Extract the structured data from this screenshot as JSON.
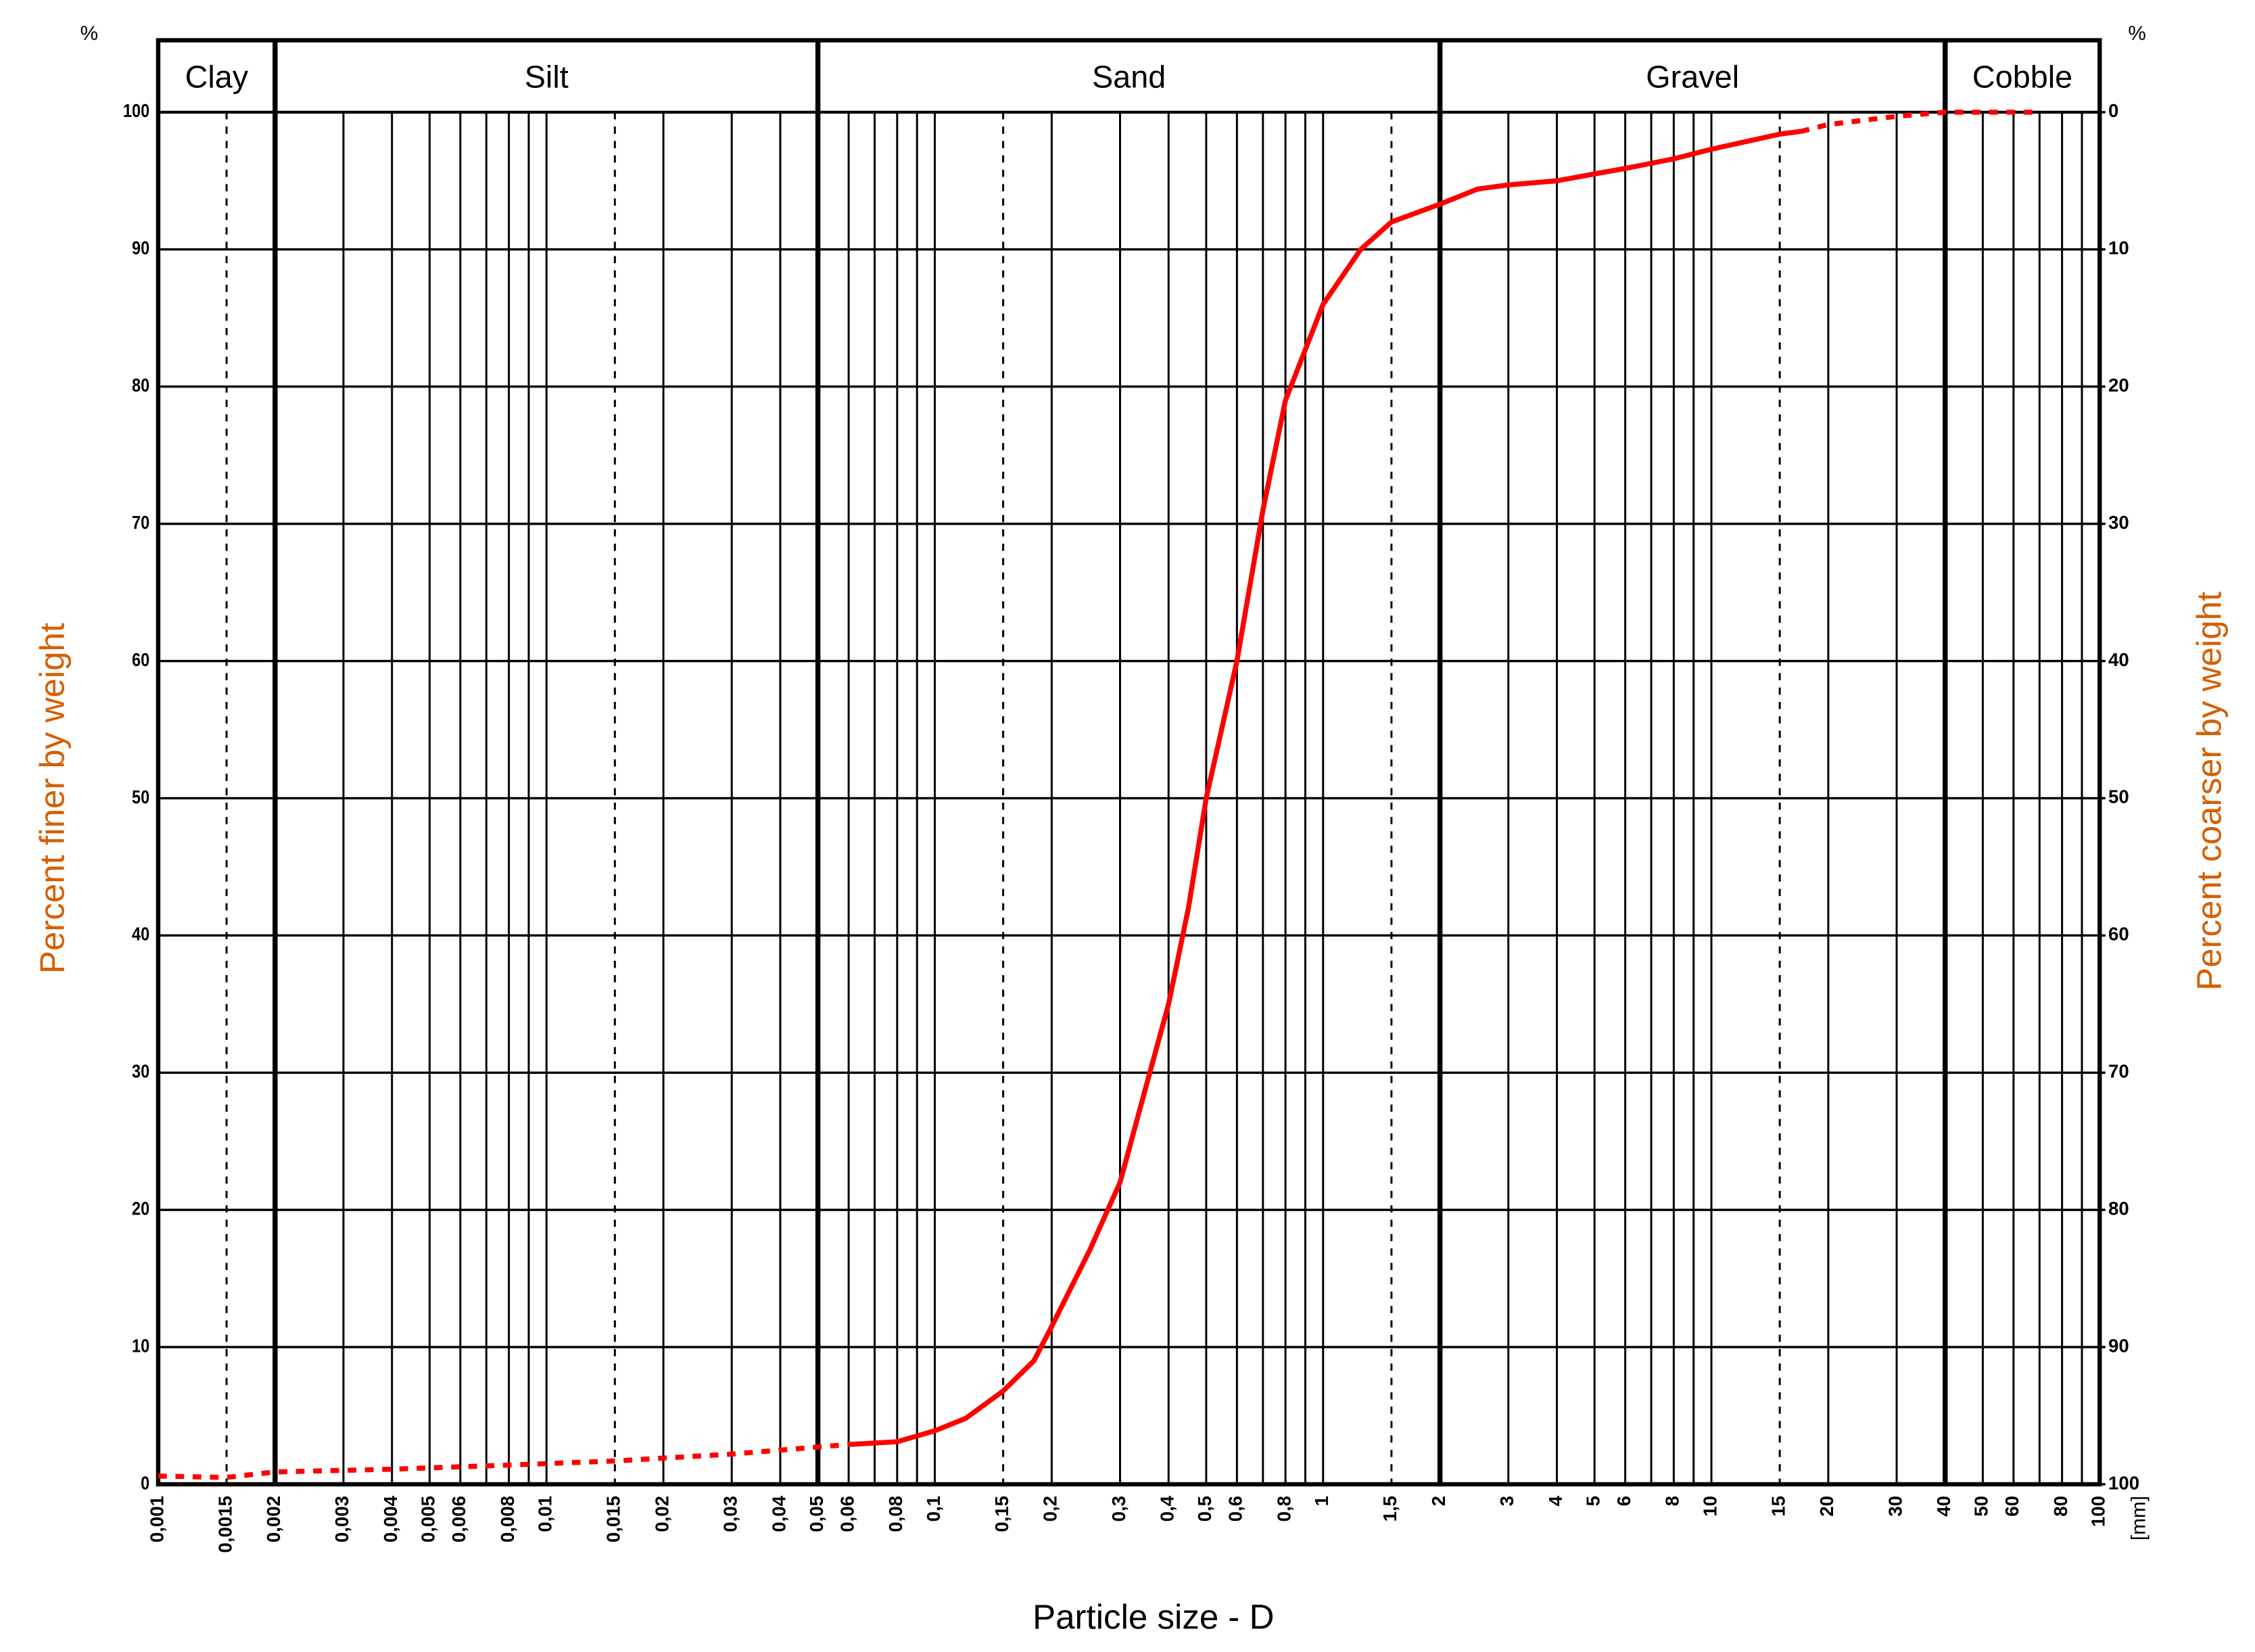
{
  "chart_data": {
    "type": "line",
    "x_label": "Particle size - D",
    "x_unit": "[mm]",
    "y_label": "Percent finer by weight",
    "y2_label": "Percent coarser by weight",
    "y_unit": "%",
    "y2_unit": "%",
    "label_color": "#d65f00",
    "xscale": "log",
    "xlim": [
      0.001,
      100
    ],
    "xticks": [
      {
        "value": 0.001,
        "label": "0,001"
      },
      {
        "value": 0.0015,
        "label": "0,0015"
      },
      {
        "value": 0.002,
        "label": "0,002"
      },
      {
        "value": 0.003,
        "label": "0,003"
      },
      {
        "value": 0.004,
        "label": "0,004"
      },
      {
        "value": 0.005,
        "label": "0,005"
      },
      {
        "value": 0.006,
        "label": "0,006"
      },
      {
        "value": 0.008,
        "label": "0,008"
      },
      {
        "value": 0.01,
        "label": "0,01"
      },
      {
        "value": 0.015,
        "label": "0,015"
      },
      {
        "value": 0.02,
        "label": "0,02"
      },
      {
        "value": 0.03,
        "label": "0,03"
      },
      {
        "value": 0.04,
        "label": "0,04"
      },
      {
        "value": 0.05,
        "label": "0,05"
      },
      {
        "value": 0.06,
        "label": "0,06"
      },
      {
        "value": 0.08,
        "label": "0,08"
      },
      {
        "value": 0.1,
        "label": "0,1"
      },
      {
        "value": 0.15,
        "label": "0,15"
      },
      {
        "value": 0.2,
        "label": "0,2"
      },
      {
        "value": 0.3,
        "label": "0,3"
      },
      {
        "value": 0.4,
        "label": "0,4"
      },
      {
        "value": 0.5,
        "label": "0,5"
      },
      {
        "value": 0.6,
        "label": "0,6"
      },
      {
        "value": 0.8,
        "label": "0,8"
      },
      1,
      {
        "value": 1.5,
        "label": "1,5"
      },
      2,
      3,
      4,
      5,
      6,
      8,
      10,
      15,
      20,
      30,
      40,
      50,
      60,
      80,
      100
    ],
    "xminorticks": [
      0.007,
      0.009,
      0.07,
      0.09,
      0.7,
      0.9,
      7,
      9,
      70,
      90
    ],
    "ylim": [
      0,
      100
    ],
    "yticks": [
      0,
      10,
      20,
      30,
      40,
      50,
      60,
      70,
      80,
      90,
      100
    ],
    "y2lim": [
      100,
      0
    ],
    "y2ticks": [
      0,
      10,
      20,
      30,
      40,
      50,
      60,
      70,
      80,
      90,
      100
    ],
    "grid": true,
    "zones": [
      {
        "name": "Clay",
        "from": 0.001,
        "to": 0.002
      },
      {
        "name": "Silt",
        "from": 0.002,
        "to": 0.05
      },
      {
        "name": "Sand",
        "from": 0.05,
        "to": 2
      },
      {
        "name": "Gravel",
        "from": 2,
        "to": 40
      },
      {
        "name": "Cobble",
        "from": 40,
        "to": 100
      }
    ],
    "series": [
      {
        "color": "#ff0000",
        "style": "dashed",
        "x": [
          0.001,
          0.0015,
          0.002,
          0.004,
          0.008,
          0.015,
          0.03,
          0.06
        ],
        "values": [
          0.6,
          0.5,
          0.9,
          1.1,
          1.4,
          1.7,
          2.2,
          2.9
        ]
      },
      {
        "color": "#ff0000",
        "style": "solid",
        "x": [
          0.06,
          0.08,
          0.1,
          0.12,
          0.15,
          0.18,
          0.2,
          0.25,
          0.3,
          0.35,
          0.4,
          0.45,
          0.5,
          0.6,
          0.7,
          0.8,
          1,
          1.25,
          1.5,
          2,
          2.5,
          3,
          4,
          5,
          6,
          8,
          10,
          15,
          17
        ],
        "values": [
          2.9,
          3.1,
          3.9,
          4.8,
          6.8,
          9.0,
          11.5,
          17,
          22,
          29,
          35,
          42,
          50,
          60,
          71,
          79,
          86,
          90,
          92,
          93.3,
          94.4,
          94.7,
          95,
          95.5,
          95.9,
          96.6,
          97.3,
          98.4,
          98.6
        ]
      },
      {
        "color": "#ff0000",
        "style": "dashed",
        "x": [
          17,
          20,
          30,
          40,
          60,
          70
        ],
        "values": [
          98.6,
          99.1,
          99.7,
          100,
          100,
          100
        ]
      }
    ]
  }
}
